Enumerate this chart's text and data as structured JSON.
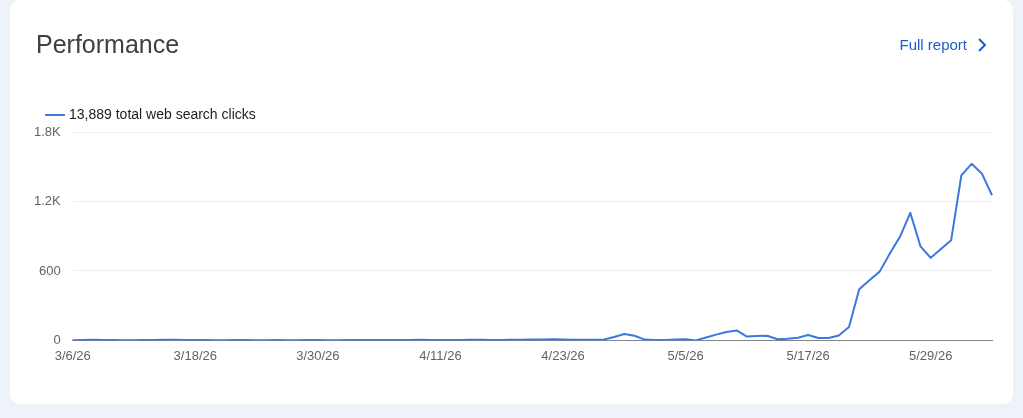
{
  "chart_data": {
    "type": "line",
    "title": "Performance",
    "annotations": [
      "Full report"
    ],
    "categories": [
      "3/6/26",
      null,
      null,
      null,
      null,
      null,
      null,
      null,
      null,
      null,
      null,
      null,
      "3/18/26",
      null,
      null,
      null,
      null,
      null,
      null,
      null,
      null,
      null,
      null,
      null,
      "3/30/26",
      null,
      null,
      null,
      null,
      null,
      null,
      null,
      null,
      null,
      null,
      null,
      "4/11/26",
      null,
      null,
      null,
      null,
      null,
      null,
      null,
      null,
      null,
      null,
      null,
      "4/23/26",
      null,
      null,
      null,
      null,
      null,
      null,
      null,
      null,
      null,
      null,
      null,
      "5/5/26",
      null,
      null,
      null,
      null,
      null,
      null,
      null,
      null,
      null,
      null,
      null,
      "5/17/26",
      null,
      null,
      null,
      null,
      null,
      null,
      null,
      null,
      null,
      null,
      null,
      "5/29/26",
      null,
      null,
      null,
      null,
      null,
      null
    ],
    "series": [
      {
        "name": "13,889 total web search clicks",
        "color": "#3b78e0",
        "values": [
          2,
          3,
          5,
          4,
          3,
          2,
          2,
          3,
          4,
          5,
          6,
          4,
          3,
          3,
          2,
          2,
          3,
          3,
          2,
          2,
          3,
          2,
          2,
          3,
          3,
          2,
          2,
          3,
          3,
          4,
          3,
          3,
          3,
          4,
          5,
          4,
          3,
          3,
          4,
          5,
          6,
          4,
          4,
          5,
          6,
          7,
          8,
          9,
          7,
          6,
          6,
          5,
          8,
          30,
          56,
          40,
          7,
          3,
          3,
          8,
          10,
          0,
          25,
          50,
          73,
          86,
          33,
          38,
          40,
          10,
          15,
          23,
          46,
          20,
          20,
          43,
          115,
          442,
          520,
          594,
          750,
          897,
          1102,
          812,
          713,
          790,
          865,
          1426,
          1525,
          1442,
          1254
        ]
      }
    ],
    "ylim": [
      0,
      1800
    ],
    "yticks": [
      0,
      600,
      {
        "value": 1200,
        "label": "1.2K"
      },
      {
        "value": 1800,
        "label": "1.8K"
      }
    ],
    "grid": "y",
    "legend": "top left",
    "marker": "none",
    "line_style": "solid"
  }
}
